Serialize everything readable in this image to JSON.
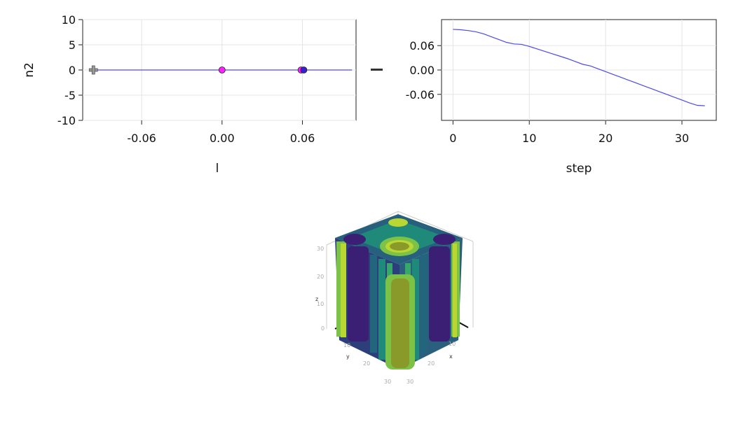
{
  "chart_data": [
    {
      "type": "scatter",
      "xlabel": "l",
      "ylabel": "n2",
      "xlim": [
        -0.104,
        0.1
      ],
      "ylim": [
        -10,
        10
      ],
      "xticks": [
        "-0.06",
        "0.00",
        "0.06"
      ],
      "yticks": [
        "10",
        "5",
        "0",
        "-5",
        "-10"
      ],
      "grid": true,
      "line": {
        "x": [
          -0.096,
          0.097
        ],
        "y": [
          0,
          0
        ],
        "color": "#4a4af0"
      },
      "markers": [
        {
          "shape": "plus",
          "x": -0.096,
          "y": 0,
          "color": "#9a9a9a"
        },
        {
          "shape": "circle",
          "x": 0.0,
          "y": 0,
          "color": "#ff22ff"
        },
        {
          "shape": "circle",
          "x": 0.059,
          "y": 0,
          "color": "#ff22ff"
        },
        {
          "shape": "circle",
          "x": 0.061,
          "y": 0,
          "color": "#3a1fd0"
        }
      ]
    },
    {
      "type": "line",
      "xlabel": "step",
      "ylabel": "",
      "xlim": [
        -1.5,
        34.5
      ],
      "ylim": [
        -0.124,
        0.124
      ],
      "xticks": [
        "0",
        "10",
        "20",
        "30"
      ],
      "yticks": [
        "0.06",
        "0.00",
        "-0.06"
      ],
      "grid": true,
      "series": [
        {
          "color": "#4a4af0",
          "x": [
            0,
            1,
            2,
            3,
            4,
            5,
            6,
            7,
            8,
            9,
            10,
            11,
            12,
            13,
            14,
            15,
            16,
            17,
            18,
            19,
            20,
            21,
            22,
            23,
            24,
            25,
            26,
            27,
            28,
            29,
            30,
            31,
            32,
            33
          ],
          "y": [
            0.1,
            0.099,
            0.097,
            0.094,
            0.089,
            0.082,
            0.075,
            0.068,
            0.064,
            0.063,
            0.058,
            0.052,
            0.046,
            0.04,
            0.034,
            0.028,
            0.021,
            0.014,
            0.01,
            0.003,
            -0.004,
            -0.011,
            -0.018,
            -0.025,
            -0.032,
            -0.039,
            -0.046,
            -0.053,
            -0.06,
            -0.067,
            -0.074,
            -0.081,
            -0.087,
            -0.088
          ]
        }
      ]
    },
    {
      "type": "3d-surface",
      "axis_labels": {
        "x": "x",
        "y": "y",
        "z": "z"
      },
      "ticks": {
        "x": [
          "10",
          "20",
          "30"
        ],
        "y": [
          "10",
          "20",
          "30"
        ],
        "z": [
          "0",
          "10",
          "20",
          "30"
        ]
      },
      "colors": [
        "#3b1f74",
        "#2c3f7a",
        "#23657c",
        "#1f8a7a",
        "#35a86a",
        "#7cc247",
        "#b9d632"
      ]
    }
  ]
}
